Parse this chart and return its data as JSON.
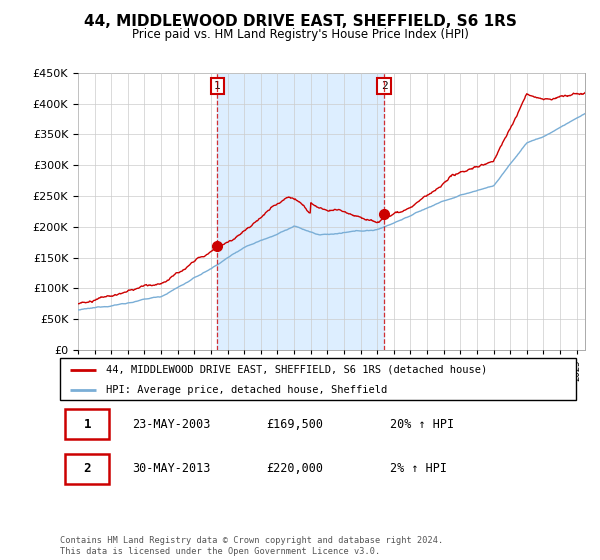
{
  "title": "44, MIDDLEWOOD DRIVE EAST, SHEFFIELD, S6 1RS",
  "subtitle": "Price paid vs. HM Land Registry's House Price Index (HPI)",
  "legend_line1": "44, MIDDLEWOOD DRIVE EAST, SHEFFIELD, S6 1RS (detached house)",
  "legend_line2": "HPI: Average price, detached house, Sheffield",
  "sale1_date": "23-MAY-2003",
  "sale1_price": "£169,500",
  "sale1_hpi": "20% ↑ HPI",
  "sale1_year": 2003.39,
  "sale1_value": 169500,
  "sale2_date": "30-MAY-2013",
  "sale2_price": "£220,000",
  "sale2_hpi": "2% ↑ HPI",
  "sale2_year": 2013.41,
  "sale2_value": 220000,
  "xmin": 1995,
  "xmax": 2025.5,
  "ymin": 0,
  "ymax": 450000,
  "yticks": [
    0,
    50000,
    100000,
    150000,
    200000,
    250000,
    300000,
    350000,
    400000,
    450000
  ],
  "red_color": "#cc0000",
  "blue_color": "#7aaed6",
  "shade_color": "#ddeeff",
  "background_color": "#ffffff",
  "footer_text": "Contains HM Land Registry data © Crown copyright and database right 2024.\nThis data is licensed under the Open Government Licence v3.0."
}
